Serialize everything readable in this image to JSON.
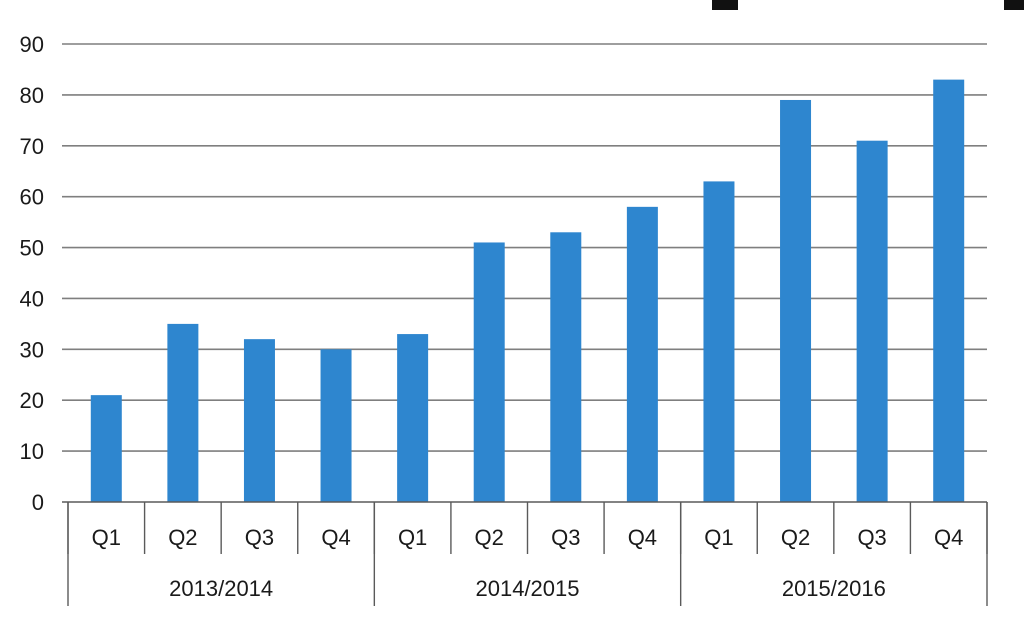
{
  "colors": {
    "bar": "#2E86CF",
    "grid": "#7f7f7f",
    "axis": "#5a5a5a",
    "text": "#1a1a1a"
  },
  "chart_data": {
    "type": "bar",
    "categories": [
      "Q1",
      "Q2",
      "Q3",
      "Q4",
      "Q1",
      "Q2",
      "Q3",
      "Q4",
      "Q1",
      "Q2",
      "Q3",
      "Q4"
    ],
    "groups": [
      {
        "label": "2013/2014",
        "span": 4
      },
      {
        "label": "2014/2015",
        "span": 4
      },
      {
        "label": "2015/2016",
        "span": 4
      }
    ],
    "series": [
      {
        "values": [
          21,
          35,
          32,
          30,
          33,
          51,
          53,
          58,
          63,
          79,
          71,
          83
        ]
      }
    ],
    "ylim": [
      0,
      90
    ],
    "yticks": [
      0,
      10,
      20,
      30,
      40,
      50,
      60,
      70,
      80,
      90
    ],
    "grid": true,
    "legend": "none"
  }
}
